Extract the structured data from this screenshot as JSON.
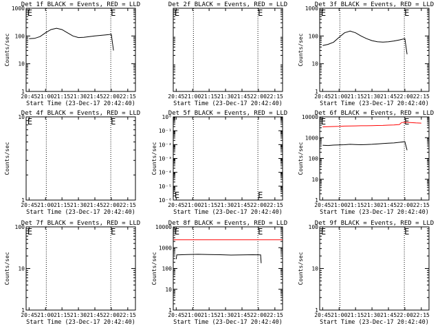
{
  "time_axis": {
    "xlabel": "Start Time (23-Dec-17 20:42:40)",
    "tick_labels": [
      "20:45",
      "21:00",
      "21:15",
      "21:30",
      "21:45",
      "22:00",
      "22:15"
    ],
    "tick_minutes_from_2045": [
      0,
      15,
      30,
      45,
      60,
      75,
      90
    ],
    "xlim_minutes_from_2045": [
      -2.7,
      97.0
    ],
    "dotted_markers_minutes": [
      15.7,
      74.5
    ],
    "event_marker_label": "E"
  },
  "chart_data": [
    {
      "type": "line",
      "title": "Det 1f BLACK = Events, RED = LLD",
      "ylabel": "Counts/sec",
      "scale": "log",
      "ylim": [
        1,
        1000
      ],
      "ytick_labels": [
        "1",
        "10",
        "100",
        "1000"
      ],
      "ytick_values": [
        1,
        10,
        100,
        1000
      ],
      "e_markers": [
        [
          -1.5,
          "top"
        ],
        [
          74.5,
          "top"
        ]
      ],
      "series": [
        {
          "color": "#000000",
          "x": [
            0,
            5,
            10,
            15,
            20,
            25,
            30,
            35,
            40,
            45,
            50,
            55,
            60,
            65,
            70,
            75,
            77
          ],
          "y": [
            80,
            82,
            95,
            130,
            170,
            190,
            170,
            130,
            100,
            88,
            90,
            95,
            100,
            105,
            110,
            115,
            30
          ]
        }
      ]
    },
    {
      "type": "line",
      "title": "Det 2f BLACK = Events, RED = LLD",
      "ylabel": "",
      "scale": "log",
      "ylim": [
        1,
        1000
      ],
      "ytick_labels": [],
      "ytick_values": [],
      "e_markers": [
        [
          -1.5,
          "top"
        ],
        [
          74.5,
          "top"
        ]
      ],
      "series": []
    },
    {
      "type": "line",
      "title": "Det 3f BLACK = Events, RED = LLD",
      "ylabel": "Counts/sec",
      "scale": "log",
      "ylim": [
        1,
        1000
      ],
      "ytick_labels": [
        "1",
        "10",
        "100",
        "1000"
      ],
      "ytick_values": [
        1,
        10,
        100,
        1000
      ],
      "e_markers": [
        [
          -1.5,
          "top"
        ],
        [
          74.5,
          "top"
        ]
      ],
      "series": [
        {
          "color": "#000000",
          "x": [
            0,
            5,
            10,
            15,
            20,
            25,
            30,
            35,
            40,
            45,
            50,
            55,
            60,
            65,
            70,
            75,
            77
          ],
          "y": [
            45,
            50,
            60,
            90,
            130,
            150,
            130,
            100,
            80,
            68,
            62,
            60,
            62,
            66,
            72,
            80,
            22
          ]
        }
      ]
    },
    {
      "type": "line",
      "title": "Det 4f BLACK = Events, RED = LLD",
      "ylabel": "Counts/sec",
      "scale": "log",
      "ylim": [
        1,
        10
      ],
      "ytick_labels": [
        "1",
        "10"
      ],
      "ytick_values": [
        1,
        10
      ],
      "e_markers": [
        [
          -1.5,
          "top"
        ],
        [
          74.5,
          "top"
        ]
      ],
      "series": []
    },
    {
      "type": "line",
      "title": "Det 5f BLACK = Events, RED = LLD",
      "ylabel": "Counts/sec",
      "scale": "log",
      "ylim": [
        1e-06,
        1
      ],
      "ytick_labels": [
        "10⁰",
        "10⁻¹",
        "10⁻²",
        "10⁻³",
        "10⁻⁴",
        "10⁻⁵",
        "10⁻⁶"
      ],
      "ytick_values": [
        1,
        0.1,
        0.01,
        0.001,
        0.0001,
        1e-05,
        1e-06
      ],
      "e_markers": [
        [
          -1.5,
          "bottom"
        ],
        [
          74.5,
          "bottom"
        ]
      ],
      "series": []
    },
    {
      "type": "line",
      "title": "Det 6f BLACK = Events, RED = LLD",
      "ylabel": "Counts/sec",
      "scale": "log",
      "ylim": [
        1,
        10000
      ],
      "ytick_labels": [
        "1",
        "10",
        "100",
        "1000",
        "10000"
      ],
      "ytick_values": [
        1,
        10,
        100,
        1000,
        10000
      ],
      "e_markers": [
        [
          -1.5,
          "top"
        ],
        [
          74.5,
          "top"
        ]
      ],
      "series": [
        {
          "color": "#ff0000",
          "x": [
            0,
            5,
            10,
            15,
            20,
            25,
            30,
            35,
            40,
            45,
            50,
            55,
            60,
            65,
            70,
            72,
            75,
            80,
            85,
            90
          ],
          "y": [
            3300,
            3400,
            3450,
            3500,
            3600,
            3650,
            3700,
            3750,
            3750,
            3800,
            3850,
            3900,
            4000,
            4100,
            4300,
            5300,
            5500,
            5300,
            5100,
            5000
          ]
        },
        {
          "color": "#000000",
          "x": [
            0,
            5,
            10,
            15,
            20,
            25,
            30,
            35,
            40,
            45,
            50,
            55,
            60,
            65,
            70,
            75,
            77
          ],
          "y": [
            430,
            420,
            440,
            450,
            460,
            480,
            470,
            460,
            470,
            480,
            500,
            520,
            540,
            560,
            600,
            640,
            250
          ]
        }
      ]
    },
    {
      "type": "line",
      "title": "Det 7f BLACK = Events, RED = LLD",
      "ylabel": "Counts/sec",
      "scale": "log",
      "ylim": [
        1,
        100
      ],
      "ytick_labels": [
        "1",
        "10",
        "100"
      ],
      "ytick_values": [
        1,
        10,
        100
      ],
      "e_markers": [
        [
          -1.5,
          "top"
        ],
        [
          74.5,
          "top"
        ]
      ],
      "series": []
    },
    {
      "type": "line",
      "title": "Det 8f BLACK = Events, RED = LLD",
      "ylabel": "Counts/sec",
      "scale": "log",
      "ylim": [
        1,
        10000
      ],
      "ytick_labels": [
        "1",
        "10",
        "100",
        "1000",
        "10000"
      ],
      "ytick_values": [
        1,
        10,
        100,
        1000,
        10000
      ],
      "e_markers": [
        [
          -1.5,
          "top"
        ],
        [
          74.5,
          "top"
        ]
      ],
      "series": [
        {
          "color": "#ff0000",
          "x": [
            -2.7,
            97
          ],
          "y": [
            2400,
            2400
          ]
        },
        {
          "color": "#000000",
          "x": [
            0,
            0.5,
            10,
            20,
            30,
            40,
            50,
            60,
            70,
            77,
            77.5
          ],
          "y": [
            280,
            450,
            470,
            480,
            470,
            460,
            440,
            450,
            460,
            450,
            180
          ]
        }
      ]
    },
    {
      "type": "line",
      "title": "Det 9f BLACK = Events, RED = LLD",
      "ylabel": "Counts/sec",
      "scale": "log",
      "ylim": [
        1,
        100
      ],
      "ytick_labels": [
        "1",
        "10",
        "100"
      ],
      "ytick_values": [
        1,
        10,
        100
      ],
      "e_markers": [
        [
          -1.5,
          "top"
        ],
        [
          74.5,
          "top"
        ]
      ],
      "series": []
    }
  ]
}
